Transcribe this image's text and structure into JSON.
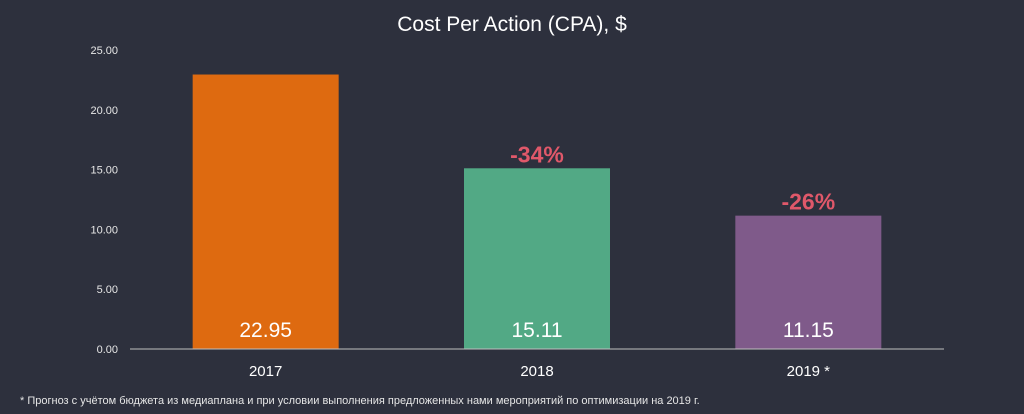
{
  "chart_data": {
    "type": "bar",
    "title": "Cost Per Action (CPA), $",
    "categories": [
      "2017",
      "2018",
      "2019 *"
    ],
    "values": [
      22.95,
      15.11,
      11.15
    ],
    "value_labels": [
      "22.95",
      "15.11",
      "11.15"
    ],
    "bar_colors": [
      "#de6a10",
      "#52a985",
      "#7f5a8a"
    ],
    "change_labels": [
      null,
      "-34%",
      "-26%"
    ],
    "change_color": "#e0586a",
    "ylim": [
      0,
      25
    ],
    "yticks": [
      "0.00",
      "5.00",
      "10.00",
      "15.00",
      "20.00",
      "25.00"
    ],
    "grid": false,
    "xlabel": "",
    "ylabel": ""
  },
  "footnote": "* Прогноз с учётом бюджета из медиаплана и при условии выполнения предложенных нами мероприятий по оптимизации на 2019 г."
}
